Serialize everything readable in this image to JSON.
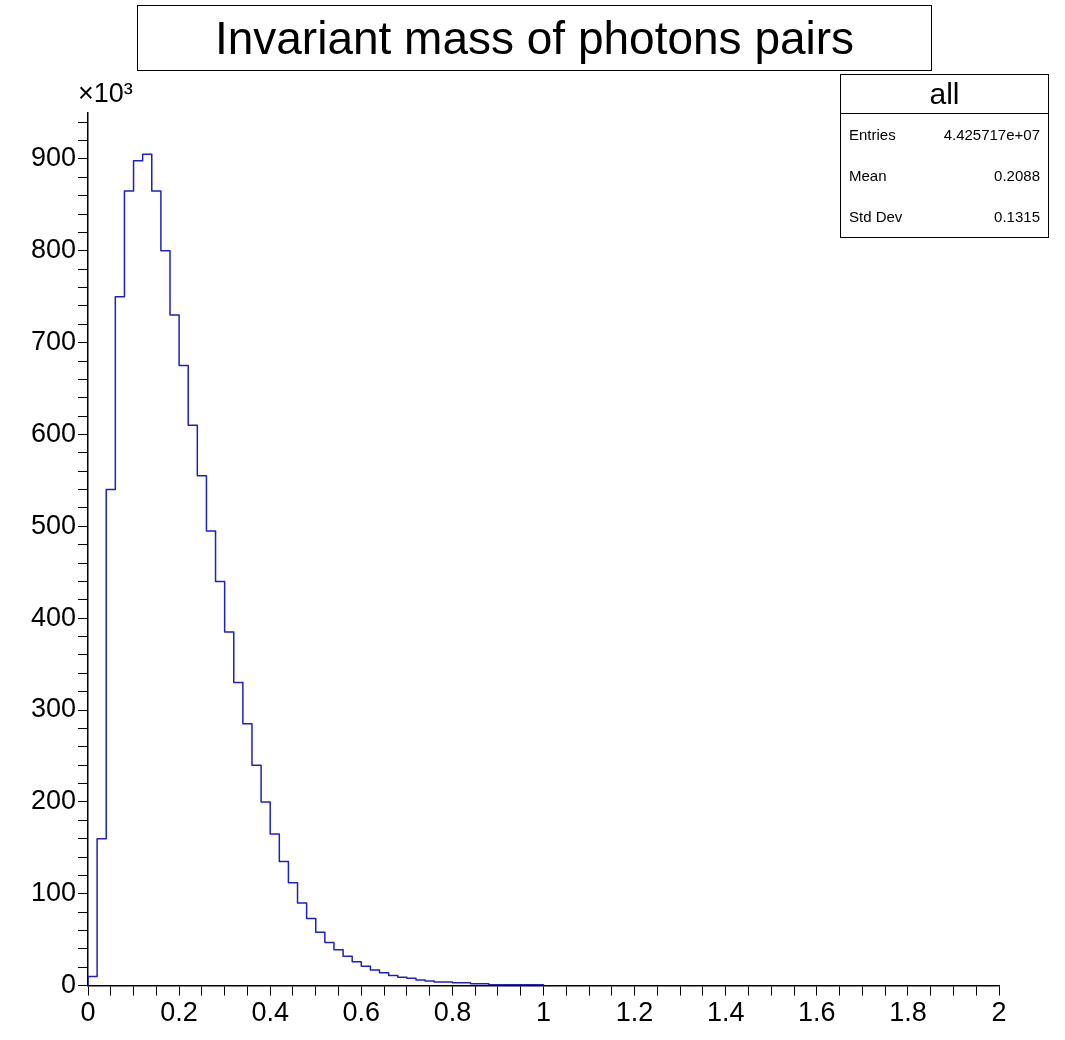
{
  "chart_data": {
    "type": "histogram",
    "title": "Invariant mass of photons pairs",
    "ylabel": "×10³",
    "bins": [
      0,
      0.02,
      0.04,
      0.06,
      0.08,
      0.1,
      0.12,
      0.14,
      0.16,
      0.18,
      0.2,
      0.22,
      0.24,
      0.26,
      0.28,
      0.3,
      0.32,
      0.34,
      0.36,
      0.38,
      0.4,
      0.42,
      0.44,
      0.46,
      0.48,
      0.5,
      0.52,
      0.54,
      0.56,
      0.58,
      0.6,
      0.62,
      0.64,
      0.66,
      0.68,
      0.7,
      0.72,
      0.74,
      0.76,
      0.78,
      0.8,
      0.82,
      0.84,
      0.86,
      0.88,
      0.9,
      0.92,
      0.94,
      0.96,
      0.98,
      1.0
    ],
    "values": [
      10,
      160,
      540,
      750,
      865,
      898,
      905,
      865,
      800,
      730,
      675,
      610,
      555,
      495,
      440,
      385,
      330,
      285,
      240,
      200,
      165,
      135,
      112,
      90,
      73,
      58,
      47,
      39,
      32,
      26,
      21,
      17,
      14,
      11,
      9,
      8,
      6,
      5,
      4,
      4,
      3,
      3,
      2,
      2,
      1,
      1,
      1,
      1,
      1,
      1
    ],
    "color": "#2020c0",
    "xlim": [
      0,
      2
    ],
    "xticks": [
      0,
      {
        "value": 0.05,
        "label": null
      },
      {
        "value": 0.1,
        "label": null
      },
      {
        "value": 0.15,
        "label": null
      },
      0.2,
      {
        "value": 0.25,
        "label": null
      },
      {
        "value": 0.3,
        "label": null
      },
      {
        "value": 0.35,
        "label": null
      },
      0.4,
      {
        "value": 0.45,
        "label": null
      },
      {
        "value": 0.5,
        "label": null
      },
      {
        "value": 0.55,
        "label": null
      },
      0.6,
      {
        "value": 0.65,
        "label": null
      },
      {
        "value": 0.7,
        "label": null
      },
      {
        "value": 0.75,
        "label": null
      },
      0.8,
      {
        "value": 0.85,
        "label": null
      },
      {
        "value": 0.9,
        "label": null
      },
      {
        "value": 0.95,
        "label": null
      },
      1,
      {
        "value": 1.05,
        "label": null
      },
      {
        "value": 1.1,
        "label": null
      },
      {
        "value": 1.15,
        "label": null
      },
      1.2,
      {
        "value": 1.25,
        "label": null
      },
      {
        "value": 1.3,
        "label": null
      },
      {
        "value": 1.35,
        "label": null
      },
      1.4,
      {
        "value": 1.45,
        "label": null
      },
      {
        "value": 1.5,
        "label": null
      },
      {
        "value": 1.55,
        "label": null
      },
      1.6,
      {
        "value": 1.65,
        "label": null
      },
      {
        "value": 1.7,
        "label": null
      },
      {
        "value": 1.75,
        "label": null
      },
      1.8,
      {
        "value": 1.85,
        "label": null
      },
      {
        "value": 1.9,
        "label": null
      },
      {
        "value": 1.95,
        "label": null
      },
      2
    ],
    "ylim": [
      0,
      950
    ],
    "yticks": [
      0,
      {
        "value": 20,
        "label": null
      },
      {
        "value": 40,
        "label": null
      },
      {
        "value": 60,
        "label": null
      },
      {
        "value": 80,
        "label": null
      },
      100,
      {
        "value": 120,
        "label": null
      },
      {
        "value": 140,
        "label": null
      },
      {
        "value": 160,
        "label": null
      },
      {
        "value": 180,
        "label": null
      },
      200,
      {
        "value": 220,
        "label": null
      },
      {
        "value": 240,
        "label": null
      },
      {
        "value": 260,
        "label": null
      },
      {
        "value": 280,
        "label": null
      },
      300,
      {
        "value": 320,
        "label": null
      },
      {
        "value": 340,
        "label": null
      },
      {
        "value": 360,
        "label": null
      },
      {
        "value": 380,
        "label": null
      },
      400,
      {
        "value": 420,
        "label": null
      },
      {
        "value": 440,
        "label": null
      },
      {
        "value": 460,
        "label": null
      },
      {
        "value": 480,
        "label": null
      },
      500,
      {
        "value": 520,
        "label": null
      },
      {
        "value": 540,
        "label": null
      },
      {
        "value": 560,
        "label": null
      },
      {
        "value": 580,
        "label": null
      },
      600,
      {
        "value": 620,
        "label": null
      },
      {
        "value": 640,
        "label": null
      },
      {
        "value": 660,
        "label": null
      },
      {
        "value": 680,
        "label": null
      },
      700,
      {
        "value": 720,
        "label": null
      },
      {
        "value": 740,
        "label": null
      },
      {
        "value": 760,
        "label": null
      },
      {
        "value": 780,
        "label": null
      },
      800,
      {
        "value": 820,
        "label": null
      },
      {
        "value": 840,
        "label": null
      },
      {
        "value": 860,
        "label": null
      },
      {
        "value": 880,
        "label": null
      },
      900,
      {
        "value": 920,
        "label": null
      },
      {
        "value": 940,
        "label": null
      }
    ],
    "annotations": [
      "all",
      "Entries",
      "4.425717e+07",
      "Mean",
      "0.2088",
      "Std Dev",
      "0.1315"
    ]
  }
}
